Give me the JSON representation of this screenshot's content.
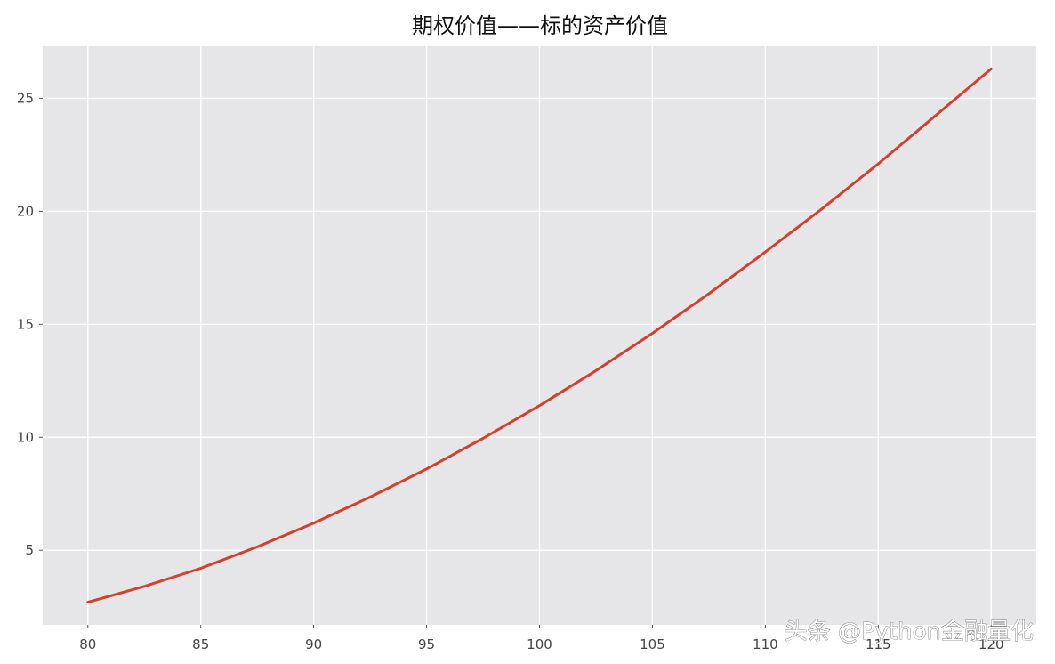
{
  "chart_data": {
    "type": "line",
    "title": "期权价值——标的资产价值",
    "xlabel": "",
    "ylabel": "",
    "xlim": [
      78,
      122
    ],
    "ylim": [
      1.7,
      27.3
    ],
    "xticks": [
      80,
      85,
      90,
      95,
      100,
      105,
      110,
      115,
      120
    ],
    "yticks": [
      5,
      10,
      15,
      20,
      25
    ],
    "xtick_labels": [
      "80",
      "85",
      "90",
      "95",
      "100",
      "105",
      "110",
      "115",
      "120"
    ],
    "ytick_labels": [
      "5",
      "10",
      "15",
      "20",
      "25"
    ],
    "grid": true,
    "series": [
      {
        "color": "#d2402e",
        "x": [
          80,
          82.5,
          85,
          87.5,
          90,
          92.5,
          95,
          97.5,
          100,
          102.5,
          105,
          107.5,
          110,
          112.5,
          115,
          117.5,
          120
        ],
        "y": [
          2.7,
          3.4,
          4.2,
          5.15,
          6.2,
          7.35,
          8.6,
          9.95,
          11.4,
          12.95,
          14.6,
          16.35,
          18.2,
          20.1,
          22.1,
          24.2,
          26.3
        ]
      }
    ],
    "background": "#e6e5e7",
    "grid_color": "#ffffff"
  },
  "watermark": "头条 @Python金融量化"
}
